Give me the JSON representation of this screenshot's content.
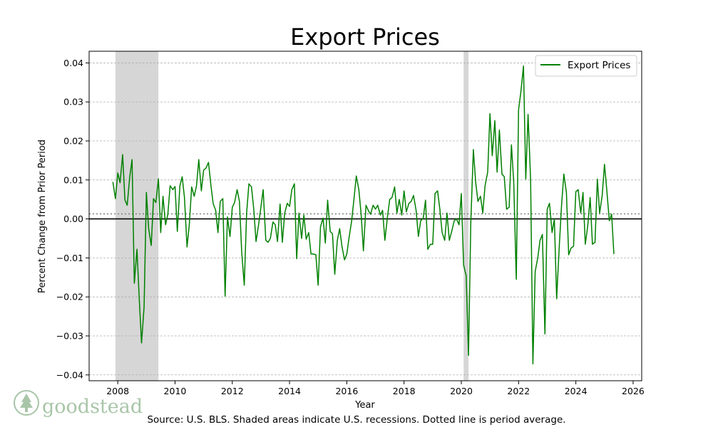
{
  "chart_data": {
    "type": "line",
    "title": "Export Prices",
    "xlabel": "Year",
    "ylabel": "Percent Change from Prior Period",
    "xlim": [
      2007.0,
      2026.3
    ],
    "ylim": [
      -0.0415,
      0.043
    ],
    "xticks": [
      2008,
      2010,
      2012,
      2014,
      2016,
      2018,
      2020,
      2022,
      2024,
      2026
    ],
    "yticks": [
      -0.04,
      -0.03,
      -0.02,
      -0.01,
      0.0,
      0.01,
      0.02,
      0.03,
      0.04
    ],
    "ytick_labels": [
      "−0.04",
      "−0.03",
      "−0.02",
      "−0.01",
      "0.00",
      "0.01",
      "0.02",
      "0.03",
      "0.04"
    ],
    "xtick_labels": [
      "2008",
      "2010",
      "2012",
      "2014",
      "2016",
      "2018",
      "2020",
      "2022",
      "2024",
      "2026"
    ],
    "grid": "horizontal dashed",
    "legend": {
      "placement": "top-right",
      "entries": [
        "Export Prices"
      ]
    },
    "recessions": [
      [
        2007.92,
        2009.42
      ],
      [
        2020.08,
        2020.25
      ]
    ],
    "average": 0.0013,
    "average_style": "dotted",
    "zero_line": 0.0,
    "series": [
      {
        "name": "Export Prices",
        "color": "#008000",
        "x": [
          2007.83,
          2007.92,
          2008.0,
          2008.08,
          2008.17,
          2008.25,
          2008.33,
          2008.42,
          2008.5,
          2008.58,
          2008.67,
          2008.75,
          2008.83,
          2008.92,
          2009.0,
          2009.08,
          2009.17,
          2009.25,
          2009.33,
          2009.42,
          2009.5,
          2009.58,
          2009.67,
          2009.75,
          2009.83,
          2009.92,
          2010.0,
          2010.08,
          2010.17,
          2010.25,
          2010.33,
          2010.42,
          2010.5,
          2010.58,
          2010.67,
          2010.75,
          2010.83,
          2010.92,
          2011.0,
          2011.08,
          2011.17,
          2011.25,
          2011.33,
          2011.42,
          2011.5,
          2011.58,
          2011.67,
          2011.75,
          2011.83,
          2011.92,
          2012.0,
          2012.08,
          2012.17,
          2012.25,
          2012.33,
          2012.42,
          2012.5,
          2012.58,
          2012.67,
          2012.75,
          2012.83,
          2012.92,
          2013.0,
          2013.08,
          2013.17,
          2013.25,
          2013.33,
          2013.42,
          2013.5,
          2013.58,
          2013.67,
          2013.75,
          2013.83,
          2013.92,
          2014.0,
          2014.08,
          2014.17,
          2014.25,
          2014.33,
          2014.42,
          2014.5,
          2014.58,
          2014.67,
          2014.75,
          2014.83,
          2014.92,
          2015.0,
          2015.08,
          2015.17,
          2015.25,
          2015.33,
          2015.42,
          2015.5,
          2015.58,
          2015.67,
          2015.75,
          2015.83,
          2015.92,
          2016.0,
          2016.08,
          2016.17,
          2016.25,
          2016.33,
          2016.42,
          2016.5,
          2016.58,
          2016.67,
          2016.75,
          2016.83,
          2016.92,
          2017.0,
          2017.08,
          2017.17,
          2017.25,
          2017.33,
          2017.42,
          2017.5,
          2017.58,
          2017.67,
          2017.75,
          2017.83,
          2017.92,
          2018.0,
          2018.08,
          2018.17,
          2018.25,
          2018.33,
          2018.42,
          2018.5,
          2018.58,
          2018.67,
          2018.75,
          2018.83,
          2018.92,
          2019.0,
          2019.08,
          2019.17,
          2019.25,
          2019.33,
          2019.42,
          2019.5,
          2019.58,
          2019.67,
          2019.75,
          2019.83,
          2019.92,
          2020.0,
          2020.08,
          2020.17,
          2020.25,
          2020.33,
          2020.42,
          2020.5,
          2020.58,
          2020.67,
          2020.75,
          2020.83,
          2020.92,
          2021.0,
          2021.08,
          2021.17,
          2021.25,
          2021.33,
          2021.42,
          2021.5,
          2021.58,
          2021.67,
          2021.75,
          2021.83,
          2021.92,
          2022.0,
          2022.08,
          2022.17,
          2022.25,
          2022.33,
          2022.42,
          2022.5,
          2022.58,
          2022.67,
          2022.75,
          2022.83,
          2022.92,
          2023.0,
          2023.08,
          2023.17,
          2023.25,
          2023.33,
          2023.42,
          2023.5,
          2023.58,
          2023.67,
          2023.75,
          2023.83,
          2023.92,
          2024.0,
          2024.08,
          2024.17,
          2024.25,
          2024.33,
          2024.42,
          2024.5,
          2024.58,
          2024.67,
          2024.75,
          2024.83,
          2024.92,
          2025.0,
          2025.08,
          2025.17,
          2025.25,
          2025.33
        ],
        "values": [
          0.0095,
          0.0052,
          0.0118,
          0.0093,
          0.0165,
          0.0049,
          0.0035,
          0.0108,
          0.0152,
          -0.0165,
          -0.0078,
          -0.0205,
          -0.0318,
          -0.0225,
          0.0068,
          -0.0025,
          -0.0068,
          0.0052,
          0.0042,
          0.0103,
          -0.0035,
          0.0058,
          -0.0015,
          0.0012,
          0.0085,
          0.0075,
          0.0083,
          -0.0032,
          0.0085,
          0.0108,
          0.0055,
          -0.0072,
          -0.0015,
          0.0082,
          0.0058,
          0.0085,
          0.0152,
          0.0072,
          0.0125,
          0.013,
          0.0145,
          0.0088,
          0.004,
          0.0022,
          -0.0035,
          0.0045,
          0.0052,
          -0.0198,
          0.0005,
          -0.0045,
          0.003,
          0.0042,
          0.0075,
          0.0045,
          -0.0085,
          -0.017,
          0.0015,
          0.009,
          0.0082,
          0.0025,
          -0.0058,
          -0.0015,
          0.003,
          0.0075,
          -0.0055,
          -0.006,
          -0.005,
          -0.0008,
          -0.0015,
          -0.0058,
          0.0038,
          -0.006,
          0.0015,
          0.004,
          0.0032,
          0.0075,
          0.009,
          -0.0102,
          0.0015,
          -0.005,
          0.001,
          -0.0052,
          -0.0035,
          -0.009,
          -0.009,
          -0.0092,
          -0.017,
          -0.002,
          0.0002,
          -0.0062,
          0.0048,
          -0.0032,
          -0.0038,
          -0.0142,
          -0.0055,
          -0.0025,
          -0.007,
          -0.0105,
          -0.009,
          -0.0048,
          -0.0005,
          0.005,
          0.011,
          0.0075,
          0.0012,
          -0.0082,
          0.0035,
          0.0022,
          0.0012,
          0.0035,
          0.0025,
          0.0035,
          0.001,
          0.0022,
          -0.0055,
          0.0005,
          0.005,
          0.0055,
          0.0082,
          0.0015,
          0.005,
          0.001,
          0.0072,
          0.0018,
          0.004,
          0.0045,
          0.006,
          0.0022,
          -0.0045,
          -0.0005,
          0.0002,
          0.0048,
          -0.0078,
          -0.0065,
          -0.0065,
          0.0065,
          0.0072,
          0.0025,
          -0.0035,
          -0.0055,
          0.0015,
          -0.0055,
          -0.003,
          -0.0005,
          0.0,
          -0.0015,
          0.0065,
          -0.0118,
          -0.0145,
          -0.035,
          -0.001,
          0.0178,
          0.0095,
          0.0045,
          0.0058,
          0.0015,
          0.0085,
          0.012,
          0.027,
          0.0162,
          0.0252,
          0.012,
          0.0228,
          0.0115,
          0.0108,
          0.0025,
          0.003,
          0.019,
          0.0095,
          -0.0155,
          0.028,
          0.0325,
          0.0392,
          0.0102,
          0.0268,
          0.01,
          -0.0372,
          -0.0135,
          -0.01,
          -0.0055,
          -0.004,
          -0.0295,
          0.0025,
          0.004,
          -0.0035,
          0.0,
          -0.0205,
          -0.007,
          0.0035,
          0.0115,
          0.0068,
          -0.0092,
          -0.0075,
          -0.007,
          0.007,
          0.0075,
          0.0015,
          0.0068,
          -0.0065,
          -0.0015,
          0.0055,
          -0.0065,
          -0.006,
          0.0102,
          0.0015,
          0.006,
          0.014,
          0.0075,
          -0.0005,
          0.0012,
          -0.009
        ]
      }
    ],
    "source_note": "Source: U.S. BLS. Shaded areas indicate U.S. recessions. Dotted line is period average."
  },
  "branding": {
    "name": "goodstead",
    "logo_icon": "tree-icon",
    "color": "#a8c5a8"
  }
}
